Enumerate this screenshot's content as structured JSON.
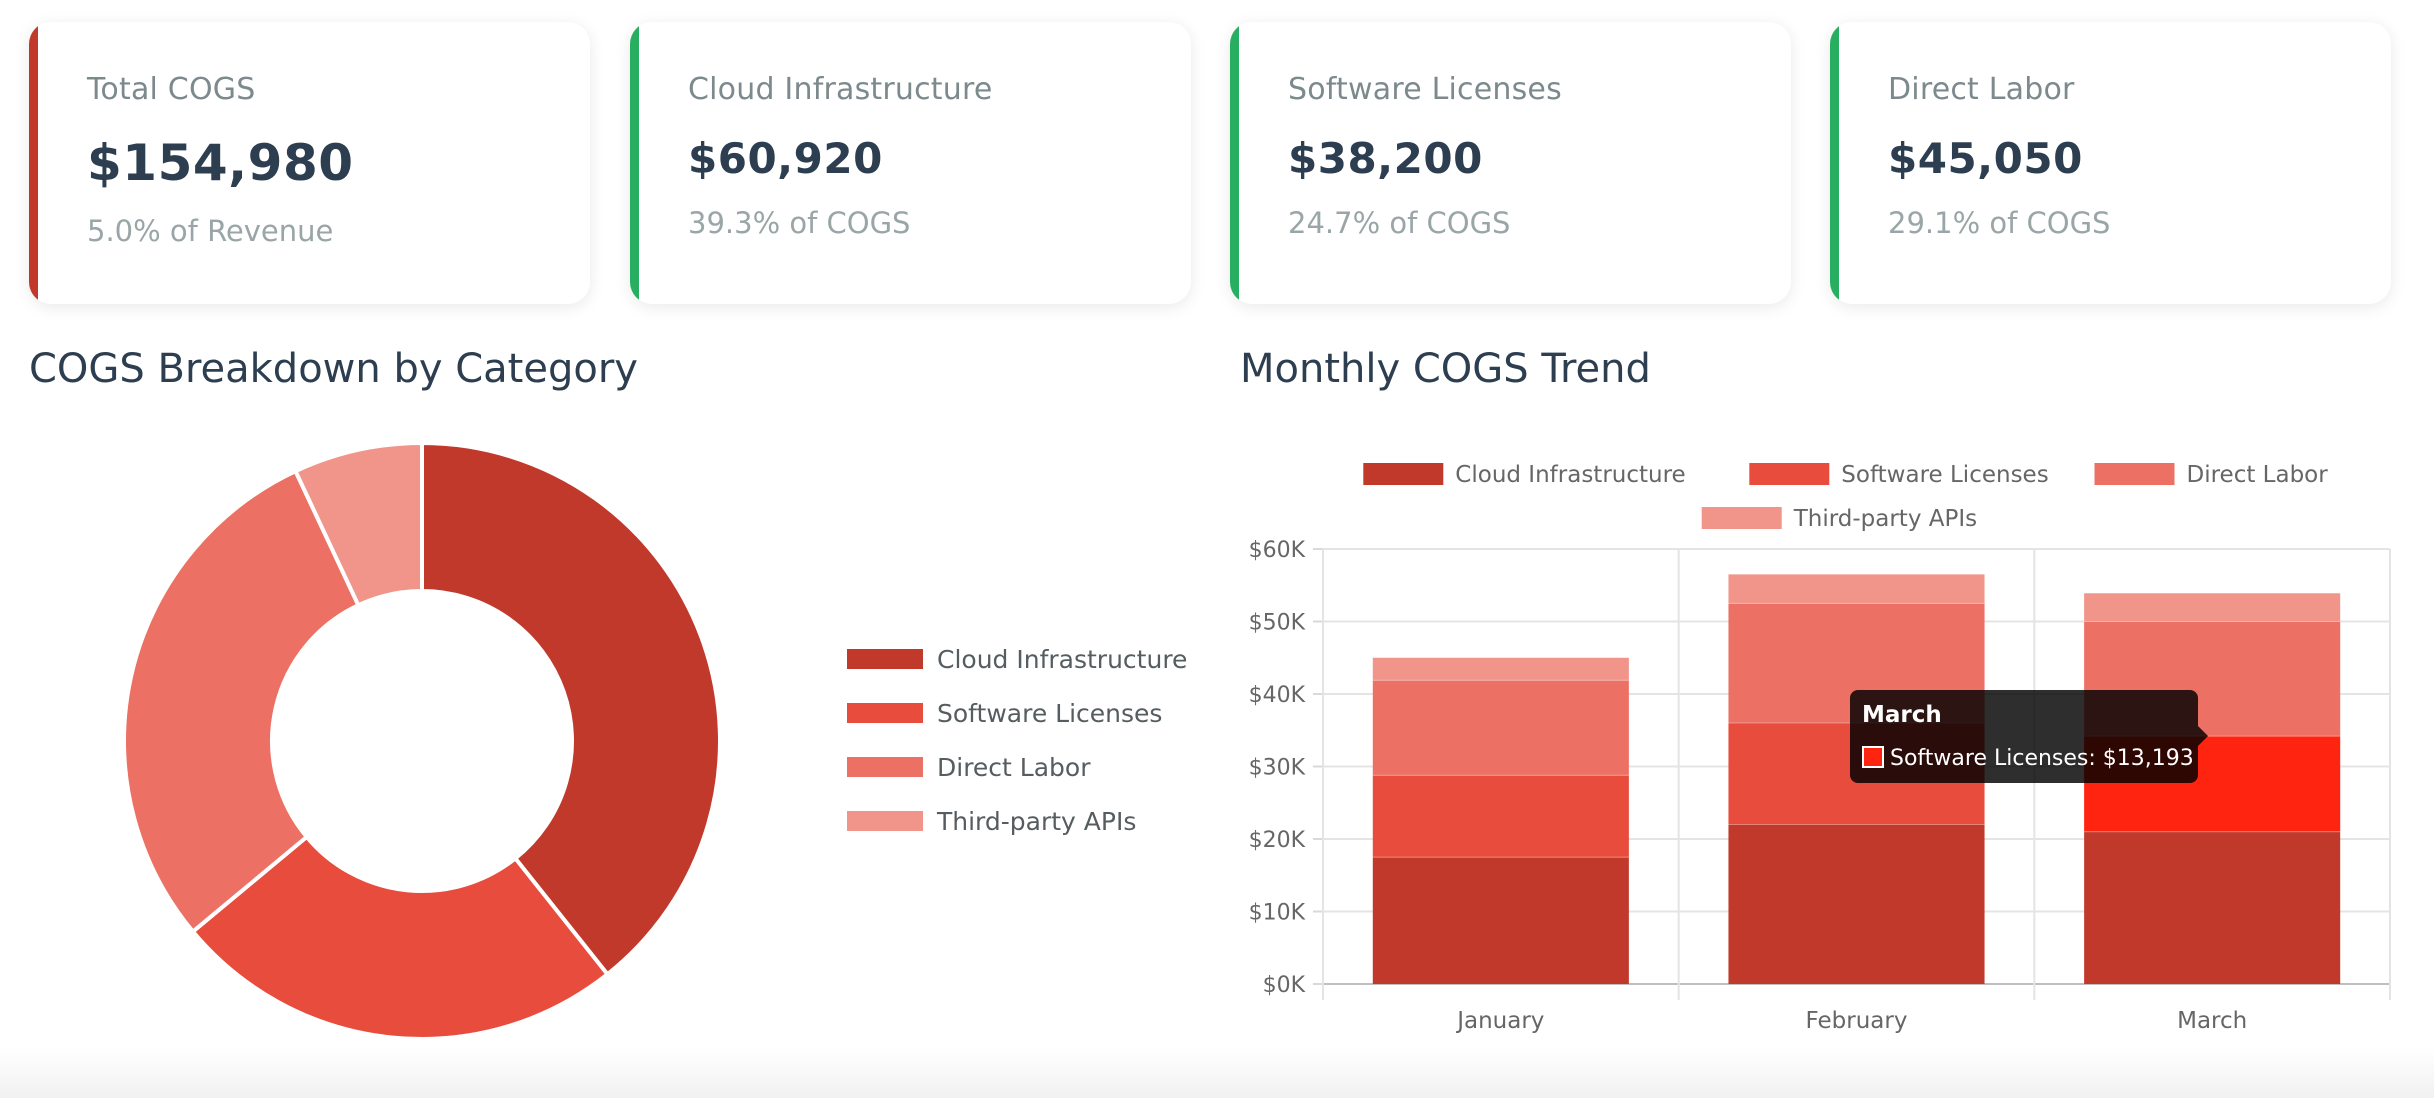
{
  "colors": {
    "cloud": "#c0392b",
    "software": "#e74c3c",
    "labor": "#ec7063",
    "apis": "#f1948a",
    "highlight": "#ff2410",
    "accent_red": "#c0392b",
    "accent_green": "#27ae60"
  },
  "cards": [
    {
      "title": "Total COGS",
      "value": "$154,980",
      "sub": "5.0% of Revenue"
    },
    {
      "title": "Cloud Infrastructure",
      "value": "$60,920",
      "sub": "39.3% of COGS"
    },
    {
      "title": "Software Licenses",
      "value": "$38,200",
      "sub": "24.7% of COGS"
    },
    {
      "title": "Direct Labor",
      "value": "$45,050",
      "sub": "29.1% of COGS"
    }
  ],
  "sections": {
    "breakdown_title": "COGS Breakdown by Category",
    "trend_title": "Monthly COGS Trend"
  },
  "tooltip": {
    "title": "March",
    "text": "Software Licenses: $13,193"
  },
  "chart_data": [
    {
      "type": "pie",
      "variant": "doughnut",
      "title": "COGS Breakdown by Category",
      "legend_position": "right",
      "categories": [
        "Cloud Infrastructure",
        "Software Licenses",
        "Direct Labor",
        "Third-party APIs"
      ],
      "values": [
        60920,
        38200,
        45050,
        10810
      ]
    },
    {
      "type": "bar",
      "stacked": true,
      "title": "Monthly COGS Trend",
      "legend_position": "top",
      "categories": [
        "January",
        "February",
        "March"
      ],
      "series": [
        {
          "name": "Cloud Infrastructure",
          "values": [
            17500,
            22000,
            21000
          ]
        },
        {
          "name": "Software Licenses",
          "values": [
            11300,
            14000,
            13193
          ]
        },
        {
          "name": "Direct Labor",
          "values": [
            13100,
            16500,
            15800
          ]
        },
        {
          "name": "Third-party APIs",
          "values": [
            3100,
            4000,
            3900
          ]
        }
      ],
      "ylim": [
        0,
        60000
      ],
      "yticks": [
        "$0K",
        "$10K",
        "$20K",
        "$30K",
        "$40K",
        "$50K",
        "$60K"
      ],
      "grid": true
    }
  ]
}
